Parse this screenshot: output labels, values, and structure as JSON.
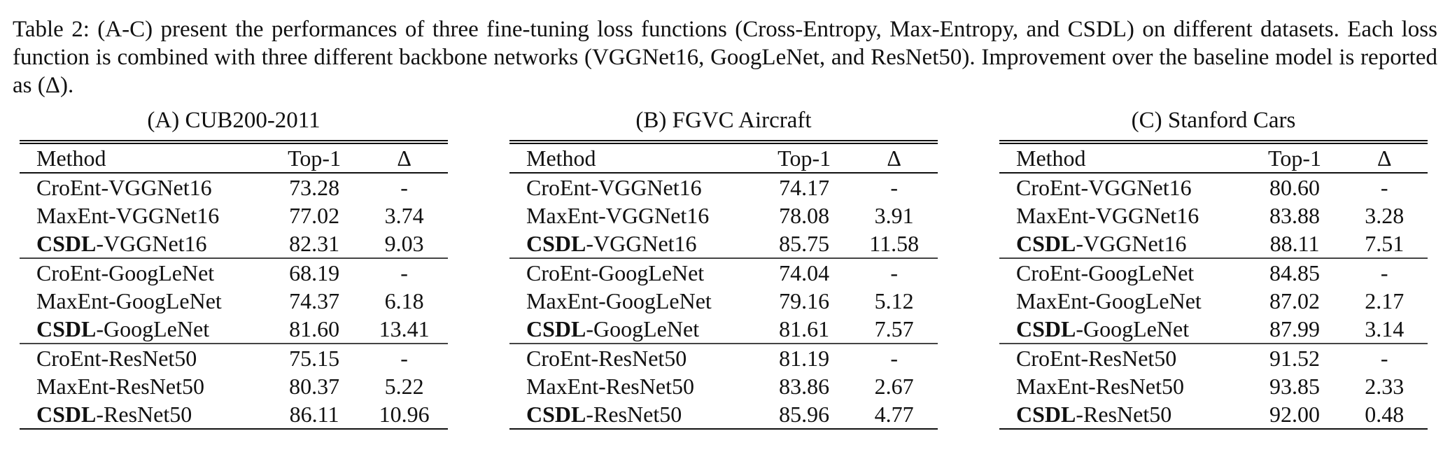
{
  "caption": "Table 2: (A-C) present the performances of three fine-tuning loss functions (Cross-Entropy, Max-Entropy, and CSDL) on different datasets. Each loss function is combined with three different backbone networks (VGGNet16, GoogLeNet, and ResNet50). Improvement over the baseline model is reported as (Δ).",
  "header": {
    "method": "Method",
    "top1": "Top-1",
    "delta": "Δ"
  },
  "panels": [
    {
      "title": "(A) CUB200-2011",
      "rows": [
        {
          "prefix": "CroEnt",
          "suffix": "-VGGNet16",
          "top1": "73.28",
          "delta": "-",
          "bold_prefix": false,
          "bold_top1": false,
          "bold_delta": false
        },
        {
          "prefix": "MaxEnt",
          "suffix": "-VGGNet16",
          "top1": "77.02",
          "delta": "3.74",
          "bold_prefix": false,
          "bold_top1": false,
          "bold_delta": false
        },
        {
          "prefix": "CSDL",
          "suffix": "-VGGNet16",
          "top1": "82.31",
          "delta": "9.03",
          "bold_prefix": true,
          "bold_top1": true,
          "bold_delta": true
        },
        {
          "prefix": "CroEnt",
          "suffix": "-GoogLeNet",
          "top1": "68.19",
          "delta": "-",
          "bold_prefix": false,
          "bold_top1": false,
          "bold_delta": false
        },
        {
          "prefix": "MaxEnt",
          "suffix": "-GoogLeNet",
          "top1": "74.37",
          "delta": "6.18",
          "bold_prefix": false,
          "bold_top1": false,
          "bold_delta": false
        },
        {
          "prefix": "CSDL",
          "suffix": "-GoogLeNet",
          "top1": "81.60",
          "delta": "13.41",
          "bold_prefix": true,
          "bold_top1": true,
          "bold_delta": true
        },
        {
          "prefix": "CroEnt",
          "suffix": "-ResNet50",
          "top1": "75.15",
          "delta": "-",
          "bold_prefix": false,
          "bold_top1": false,
          "bold_delta": false
        },
        {
          "prefix": "MaxEnt",
          "suffix": "-ResNet50",
          "top1": "80.37",
          "delta": "5.22",
          "bold_prefix": false,
          "bold_top1": false,
          "bold_delta": false
        },
        {
          "prefix": "CSDL",
          "suffix": "-ResNet50",
          "top1": "86.11",
          "delta": "10.96",
          "bold_prefix": true,
          "bold_top1": true,
          "bold_delta": true
        }
      ]
    },
    {
      "title": "(B) FGVC Aircraft",
      "rows": [
        {
          "prefix": "CroEnt",
          "suffix": "-VGGNet16",
          "top1": "74.17",
          "delta": "-",
          "bold_prefix": false,
          "bold_top1": false,
          "bold_delta": false
        },
        {
          "prefix": "MaxEnt",
          "suffix": "-VGGNet16",
          "top1": "78.08",
          "delta": "3.91",
          "bold_prefix": false,
          "bold_top1": false,
          "bold_delta": false
        },
        {
          "prefix": "CSDL",
          "suffix": "-VGGNet16",
          "top1": "85.75",
          "delta": "11.58",
          "bold_prefix": true,
          "bold_top1": true,
          "bold_delta": true
        },
        {
          "prefix": "CroEnt",
          "suffix": "-GoogLeNet",
          "top1": "74.04",
          "delta": "-",
          "bold_prefix": false,
          "bold_top1": false,
          "bold_delta": false
        },
        {
          "prefix": "MaxEnt",
          "suffix": "-GoogLeNet",
          "top1": "79.16",
          "delta": "5.12",
          "bold_prefix": false,
          "bold_top1": false,
          "bold_delta": false
        },
        {
          "prefix": "CSDL",
          "suffix": "-GoogLeNet",
          "top1": "81.61",
          "delta": "7.57",
          "bold_prefix": true,
          "bold_top1": true,
          "bold_delta": true
        },
        {
          "prefix": "CroEnt",
          "suffix": "-ResNet50",
          "top1": "81.19",
          "delta": "-",
          "bold_prefix": false,
          "bold_top1": false,
          "bold_delta": false
        },
        {
          "prefix": "MaxEnt",
          "suffix": "-ResNet50",
          "top1": "83.86",
          "delta": "2.67",
          "bold_prefix": false,
          "bold_top1": false,
          "bold_delta": false
        },
        {
          "prefix": "CSDL",
          "suffix": "-ResNet50",
          "top1": "85.96",
          "delta": "4.77",
          "bold_prefix": true,
          "bold_top1": true,
          "bold_delta": true
        }
      ]
    },
    {
      "title": "(C) Stanford Cars",
      "rows": [
        {
          "prefix": "CroEnt",
          "suffix": "-VGGNet16",
          "top1": "80.60",
          "delta": "-",
          "bold_prefix": false,
          "bold_top1": false,
          "bold_delta": false
        },
        {
          "prefix": "MaxEnt",
          "suffix": "-VGGNet16",
          "top1": "83.88",
          "delta": "3.28",
          "bold_prefix": false,
          "bold_top1": false,
          "bold_delta": false
        },
        {
          "prefix": "CSDL",
          "suffix": "-VGGNet16",
          "top1": "88.11",
          "delta": "7.51",
          "bold_prefix": true,
          "bold_top1": true,
          "bold_delta": true
        },
        {
          "prefix": "CroEnt",
          "suffix": "-GoogLeNet",
          "top1": "84.85",
          "delta": "-",
          "bold_prefix": false,
          "bold_top1": false,
          "bold_delta": false
        },
        {
          "prefix": "MaxEnt",
          "suffix": "-GoogLeNet",
          "top1": "87.02",
          "delta": "2.17",
          "bold_prefix": false,
          "bold_top1": false,
          "bold_delta": false
        },
        {
          "prefix": "CSDL",
          "suffix": "-GoogLeNet",
          "top1": "87.99",
          "delta": "3.14",
          "bold_prefix": true,
          "bold_top1": true,
          "bold_delta": true
        },
        {
          "prefix": "CroEnt",
          "suffix": "-ResNet50",
          "top1": "91.52",
          "delta": "-",
          "bold_prefix": false,
          "bold_top1": false,
          "bold_delta": false
        },
        {
          "prefix": "MaxEnt",
          "suffix": "-ResNet50",
          "top1": "93.85",
          "delta": "2.33",
          "bold_prefix": false,
          "bold_top1": true,
          "bold_delta": true
        },
        {
          "prefix": "CSDL",
          "suffix": "-ResNet50",
          "top1": "92.00",
          "delta": "0.48",
          "bold_prefix": true,
          "bold_top1": false,
          "bold_delta": false
        }
      ]
    }
  ]
}
